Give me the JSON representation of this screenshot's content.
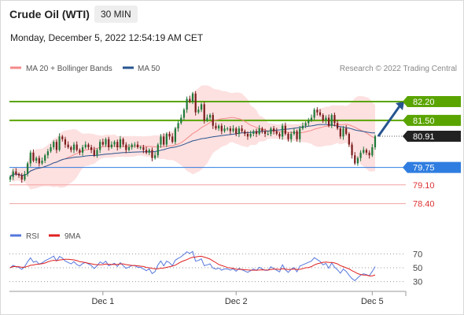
{
  "header": {
    "instrument": "Crude Oil (WTI)",
    "timeframe": "30 MIN",
    "timestamp": "Monday, December 5, 2022 12:54:19 AM CET"
  },
  "colors": {
    "candle_up": "#1f7a3a",
    "candle_down": "#7a1b1b",
    "bollinger_fill": "#fde0e0",
    "ma20": "#f48a8a",
    "ma50": "#27548f",
    "resistance": "#5aa400",
    "pivot": "#2f7de0",
    "support": "#f3a3a3",
    "current": "#222222",
    "rsi": "#5577dd",
    "rsi_ma": "#e02020",
    "arrow": "#27548f"
  },
  "chart_data": [
    {
      "type": "candlestick",
      "legend": [
        {
          "label": "MA 20 + Bollinger Bands",
          "color": "#f48a8a"
        },
        {
          "label": "MA 50",
          "color": "#27548f"
        }
      ],
      "watermark": "Research © 2022 Trading Central",
      "xticks": [
        {
          "label": "Dec 1",
          "index": 32
        },
        {
          "label": "Dec 2",
          "index": 78
        },
        {
          "label": "Dec 5",
          "index": 125
        }
      ],
      "ylim": [
        77.95,
        83.05
      ],
      "closes": [
        79.4,
        79.6,
        79.5,
        79.45,
        79.3,
        79.5,
        79.9,
        80.3,
        80.0,
        80.1,
        79.9,
        80.0,
        80.2,
        80.35,
        80.5,
        80.7,
        80.4,
        80.9,
        80.8,
        80.6,
        80.5,
        80.4,
        80.6,
        80.4,
        80.3,
        80.5,
        80.6,
        80.5,
        80.4,
        80.2,
        80.4,
        80.7,
        80.6,
        80.8,
        80.5,
        80.6,
        80.7,
        80.5,
        80.8,
        80.6,
        80.4,
        80.5,
        80.6,
        80.6,
        80.5,
        80.5,
        80.4,
        80.3,
        80.4,
        80.1,
        80.2,
        80.6,
        80.9,
        80.6,
        81.0,
        80.9,
        80.7,
        81.2,
        81.4,
        81.6,
        81.9,
        82.3,
        82.2,
        82.5,
        81.8,
        81.9,
        82.1,
        81.5,
        81.6,
        81.7,
        81.3,
        81.2,
        81.3,
        81.1,
        81.2,
        81.2,
        81.1,
        81.2,
        81.0,
        81.2,
        81.1,
        81.0,
        80.9,
        81.0,
        81.1,
        81.0,
        81.2,
        81.1,
        81.0,
        81.0,
        81.2,
        81.1,
        81.0,
        80.9,
        81.3,
        81.0,
        80.8,
        81.0,
        81.1,
        80.8,
        81.2,
        81.3,
        81.4,
        81.5,
        81.6,
        81.9,
        81.8,
        81.7,
        81.5,
        81.6,
        81.3,
        81.7,
        81.4,
        81.2,
        80.9,
        81.2,
        81.0,
        80.6,
        80.2,
        79.9,
        80.1,
        80.3,
        80.4,
        80.3,
        80.2,
        80.5,
        80.91
      ],
      "levels": [
        {
          "label": "82.20",
          "value": 82.2,
          "kind": "resistance",
          "style": "box"
        },
        {
          "label": "81.50",
          "value": 81.5,
          "kind": "resistance",
          "style": "box"
        },
        {
          "label": "80.91",
          "value": 80.91,
          "kind": "current",
          "style": "box"
        },
        {
          "label": "79.75",
          "value": 79.75,
          "kind": "pivot",
          "style": "box"
        },
        {
          "label": "79.10",
          "value": 79.1,
          "kind": "support",
          "style": "text"
        },
        {
          "label": "78.40",
          "value": 78.4,
          "kind": "support",
          "style": "text"
        }
      ],
      "arrow": {
        "from": 80.91,
        "to": 82.2
      }
    },
    {
      "type": "line",
      "legend": [
        {
          "label": "RSI",
          "color": "#5577dd"
        },
        {
          "label": "9MA",
          "color": "#e02020"
        }
      ],
      "yticks": [
        70,
        50,
        30
      ],
      "ylim": [
        25,
        75
      ]
    }
  ]
}
